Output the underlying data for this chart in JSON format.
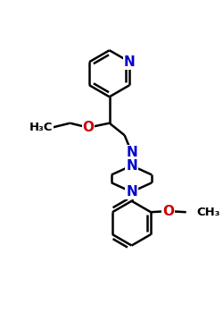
{
  "bg_color": "#ffffff",
  "atom_color_N": "#0000cc",
  "atom_color_O": "#cc0000",
  "atom_color_C": "#000000",
  "bond_color": "#000000",
  "bond_width": 1.8,
  "fig_w": 2.5,
  "fig_h": 3.5,
  "dpi": 100,
  "xlim": [
    0,
    10
  ],
  "ylim": [
    0,
    14
  ]
}
